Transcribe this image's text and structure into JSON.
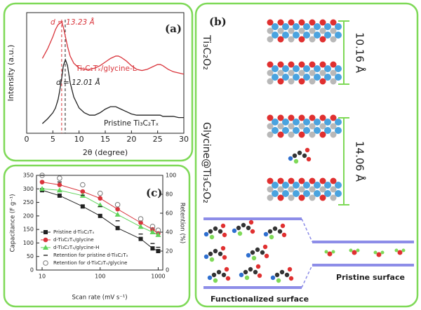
{
  "chart_data": [
    {
      "type": "line",
      "panel": "(a)",
      "xlabel": "2θ (degree)",
      "ylabel": "Intensity (a.u.)",
      "annotations": [
        "d = 13.23 Å",
        "d = 12.01 Å"
      ],
      "vlines": [
        6.68,
        7.36
      ],
      "xlim": [
        0,
        30
      ],
      "xticks": [
        0,
        5,
        10,
        15,
        20,
        25,
        30
      ],
      "ylim": [
        0,
        1
      ],
      "x": [
        3,
        4,
        5,
        5.5,
        6,
        6.3,
        6.7,
        7,
        7.4,
        7.8,
        8.3,
        9,
        10,
        11,
        12,
        13,
        14,
        15,
        16,
        17,
        17.5,
        18,
        19,
        20,
        21,
        22,
        23,
        24,
        25,
        25.5,
        26,
        27,
        28,
        29,
        30
      ],
      "series": [
        {
          "name": "Ti₃C₂Tₓ/glycine-L",
          "color": "#d9343b",
          "values": [
            0.62,
            0.7,
            0.8,
            0.86,
            0.9,
            0.91,
            0.92,
            0.88,
            0.8,
            0.72,
            0.64,
            0.58,
            0.54,
            0.53,
            0.53,
            0.54,
            0.56,
            0.59,
            0.62,
            0.64,
            0.64,
            0.63,
            0.6,
            0.56,
            0.53,
            0.52,
            0.53,
            0.55,
            0.57,
            0.57,
            0.56,
            0.53,
            0.51,
            0.5,
            0.49
          ]
        },
        {
          "name": "Pristine Ti₃C₂Tₓ",
          "color": "#222222",
          "values": [
            0.08,
            0.12,
            0.17,
            0.21,
            0.28,
            0.35,
            0.46,
            0.56,
            0.61,
            0.56,
            0.42,
            0.3,
            0.21,
            0.17,
            0.15,
            0.15,
            0.17,
            0.2,
            0.22,
            0.22,
            0.21,
            0.2,
            0.18,
            0.16,
            0.15,
            0.15,
            0.15,
            0.15,
            0.15,
            0.15,
            0.14,
            0.14,
            0.14,
            0.13,
            0.13
          ]
        }
      ]
    },
    {
      "type": "line",
      "panel": "(c)",
      "xlabel": "Scan rate (mV s⁻¹)",
      "ylabel": "Capacitance (F g⁻¹)",
      "y2label": "Retention (%)",
      "xscale": "log",
      "xlim": [
        8,
        1200
      ],
      "xticks": [
        10,
        100,
        1000
      ],
      "ylim": [
        0,
        350
      ],
      "yticks": [
        0,
        50,
        100,
        150,
        200,
        250,
        300,
        350
      ],
      "y2lim": [
        0,
        100
      ],
      "y2ticks": [
        0,
        20,
        40,
        60,
        80,
        100
      ],
      "legend": "lower left",
      "x": [
        10,
        20,
        50,
        100,
        200,
        500,
        800,
        1000
      ],
      "series": [
        {
          "name": "Pristine d-Ti₃C₂Tₓ",
          "color": "#222222",
          "marker": "square",
          "line": true,
          "values": [
            295,
            275,
            235,
            200,
            155,
            115,
            80,
            70
          ]
        },
        {
          "name": "d-Ti₃C₂Tₓ/glycine",
          "color": "#d9343b",
          "marker": "circle",
          "line": true,
          "values": [
            325,
            315,
            290,
            265,
            225,
            175,
            150,
            135
          ]
        },
        {
          "name": "d-Ti₃C₂Tₓ/glycine-H",
          "color": "#5fd35a",
          "marker": "triangle",
          "line": true,
          "values": [
            300,
            295,
            275,
            240,
            205,
            160,
            140,
            130
          ]
        },
        {
          "name": "Retention for pristine d-Ti₃C₂Tₓ",
          "color": "#222222",
          "marker": "dash",
          "line": false,
          "axis": "y2",
          "values": [
            100,
            93,
            79,
            67,
            52,
            38,
            28,
            24
          ]
        },
        {
          "name": "Retention for d-Ti₃C₂Tₓ/glycine",
          "color": "#777777",
          "marker": "open-circle",
          "line": false,
          "axis": "y2",
          "values": [
            100,
            97,
            90,
            81,
            69,
            54,
            46,
            42
          ]
        }
      ]
    }
  ],
  "diagram": {
    "panel": "(b)",
    "top_label": "Ti₃C₂O₂",
    "top_spacing": "10.16 Å",
    "bottom_label": "Glycine@Ti₃C₂O₂",
    "bottom_spacing": "14.06 Å",
    "left_caption": "Functionalized surface",
    "right_caption": "Pristine surface"
  }
}
